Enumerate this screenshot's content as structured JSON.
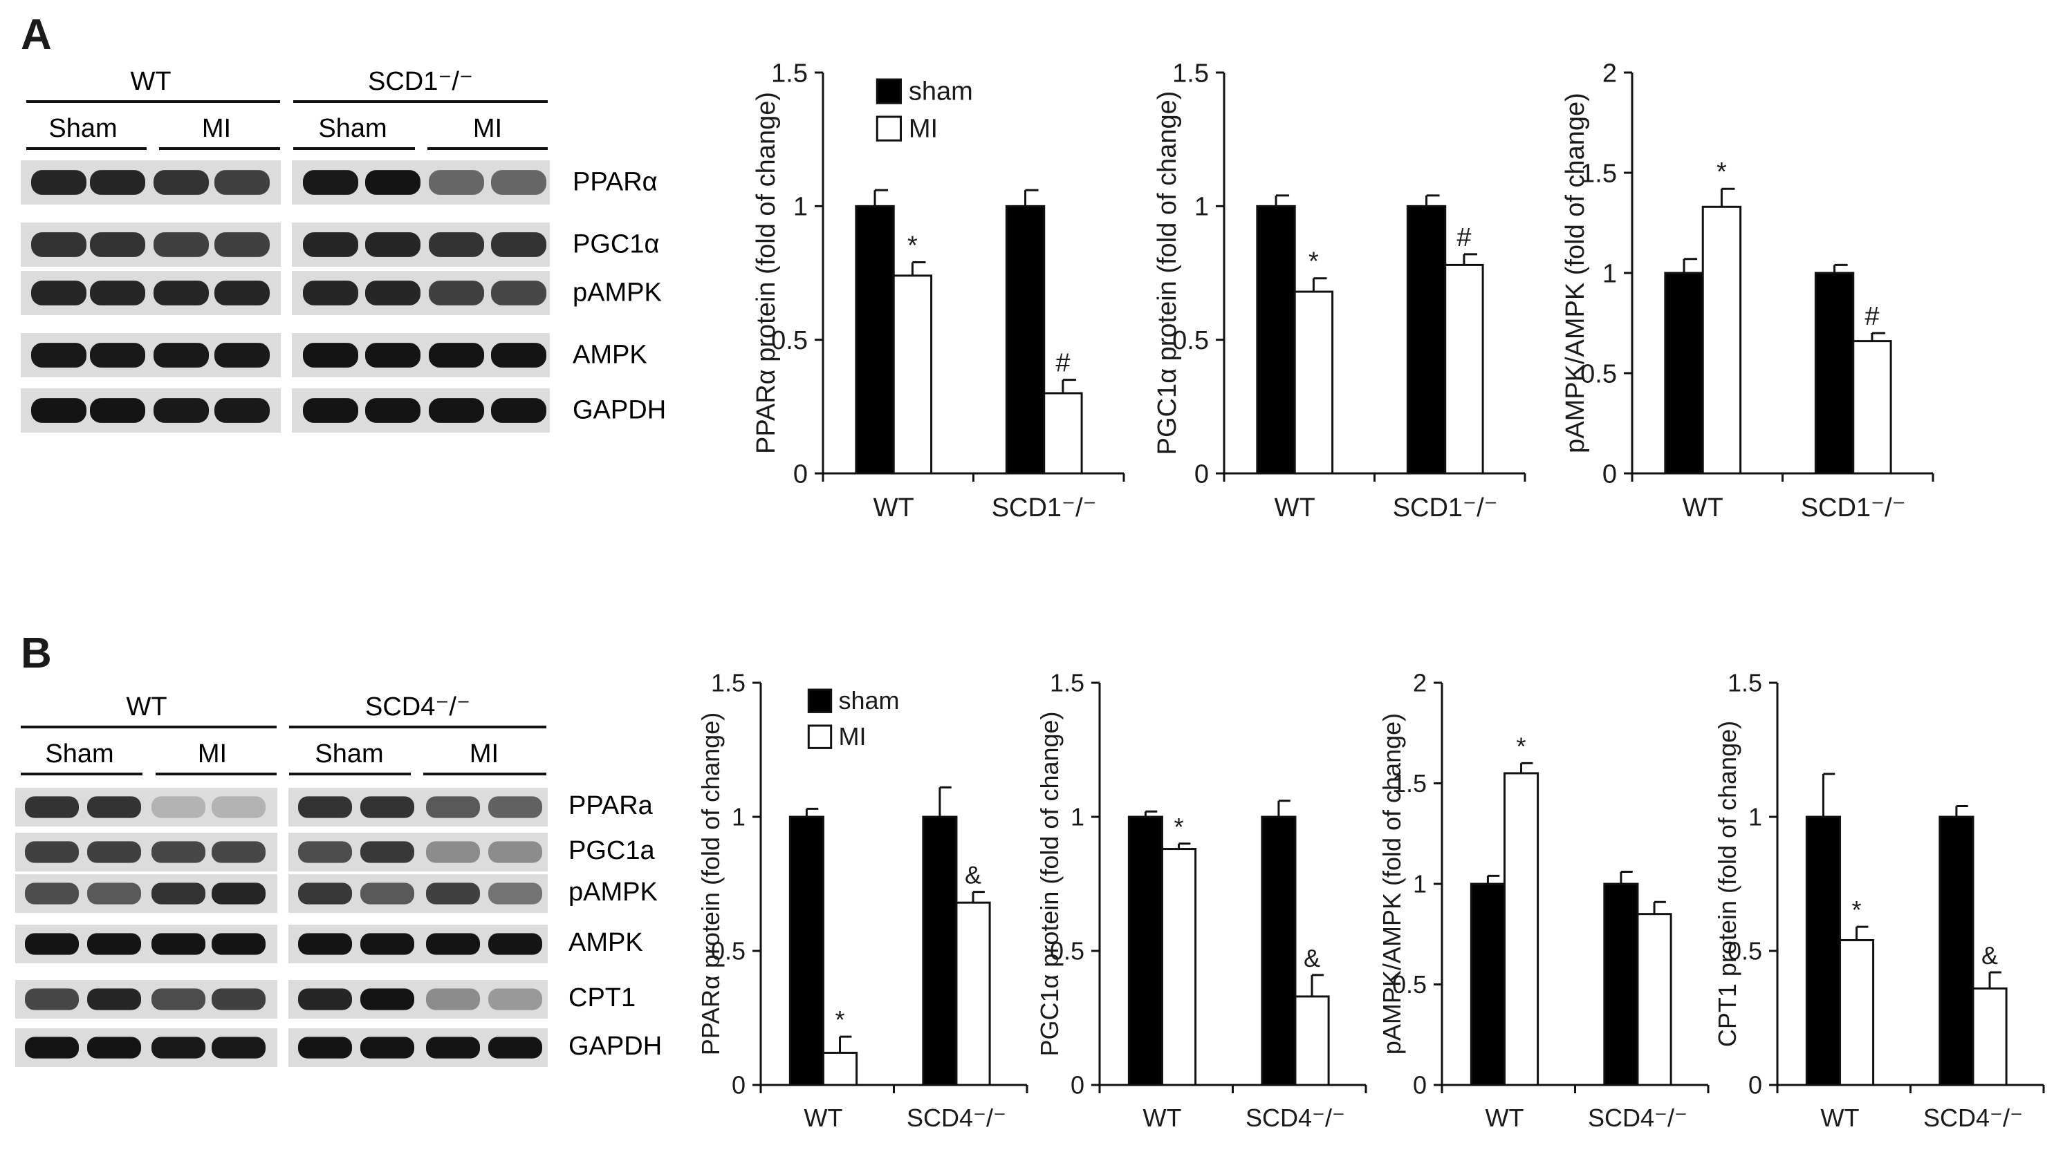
{
  "panels": {
    "A": {
      "letter": "A",
      "blot": {
        "groups": [
          "WT",
          "SCD1⁻/⁻"
        ],
        "conditions": [
          "Sham",
          "MI",
          "Sham",
          "MI"
        ],
        "rows": [
          "PPARα",
          "PGC1α",
          "pAMPK",
          "AMPK",
          "GAPDH"
        ]
      }
    },
    "B": {
      "letter": "B",
      "blot": {
        "groups": [
          "WT",
          "SCD4⁻/⁻"
        ],
        "conditions": [
          "Sham",
          "MI",
          "Sham",
          "MI"
        ],
        "rows": [
          "PPARa",
          "PGC1a",
          "pAMPK",
          "AMPK",
          "CPT1",
          "GAPDH"
        ]
      }
    }
  },
  "chart_data": [
    {
      "type": "bar",
      "panel": "A",
      "ylabel": "PPARα protein (fold of change)",
      "categories": [
        "WT",
        "SCD1⁻/⁻"
      ],
      "ylim": [
        0,
        1.5
      ],
      "yticks": [
        "0",
        "0.5",
        "1",
        "1.5"
      ],
      "legend": {
        "placement": "top-left",
        "entries": [
          "sham",
          "MI"
        ]
      },
      "series": [
        {
          "name": "sham",
          "color": "#000000",
          "values": [
            1.0,
            1.0
          ],
          "errors": [
            0.06,
            0.06
          ],
          "annotations": [
            "",
            ""
          ]
        },
        {
          "name": "MI",
          "color": "#ffffff",
          "values": [
            0.74,
            0.3
          ],
          "errors": [
            0.05,
            0.05
          ],
          "annotations": [
            "*",
            "#"
          ]
        }
      ]
    },
    {
      "type": "bar",
      "panel": "A",
      "ylabel": "PGC1α protein (fold of change)",
      "categories": [
        "WT",
        "SCD1⁻/⁻"
      ],
      "ylim": [
        0,
        1.5
      ],
      "yticks": [
        "0",
        "0.5",
        "1",
        "1.5"
      ],
      "series": [
        {
          "name": "sham",
          "color": "#000000",
          "values": [
            1.0,
            1.0
          ],
          "errors": [
            0.04,
            0.04
          ],
          "annotations": [
            "",
            ""
          ]
        },
        {
          "name": "MI",
          "color": "#ffffff",
          "values": [
            0.68,
            0.78
          ],
          "errors": [
            0.05,
            0.04
          ],
          "annotations": [
            "*",
            "#"
          ]
        }
      ]
    },
    {
      "type": "bar",
      "panel": "A",
      "ylabel": "pAMPK/AMPK (fold of change)",
      "categories": [
        "WT",
        "SCD1⁻/⁻"
      ],
      "ylim": [
        0,
        2
      ],
      "yticks": [
        "0",
        "0.5",
        "1",
        "1.5",
        "2"
      ],
      "series": [
        {
          "name": "sham",
          "color": "#000000",
          "values": [
            1.0,
            1.0
          ],
          "errors": [
            0.07,
            0.04
          ],
          "annotations": [
            "",
            ""
          ]
        },
        {
          "name": "MI",
          "color": "#ffffff",
          "values": [
            1.33,
            0.66
          ],
          "errors": [
            0.09,
            0.04
          ],
          "annotations": [
            "*",
            "#"
          ]
        }
      ]
    },
    {
      "type": "bar",
      "panel": "B",
      "ylabel": "PPARα protein (fold of change)",
      "categories": [
        "WT",
        "SCD4⁻/⁻"
      ],
      "ylim": [
        0,
        1.5
      ],
      "yticks": [
        "0",
        "0.5",
        "1",
        "1.5"
      ],
      "legend": {
        "placement": "top-left",
        "entries": [
          "sham",
          "MI"
        ]
      },
      "series": [
        {
          "name": "sham",
          "color": "#000000",
          "values": [
            1.0,
            1.0
          ],
          "errors": [
            0.03,
            0.11
          ],
          "annotations": [
            "",
            ""
          ]
        },
        {
          "name": "MI",
          "color": "#ffffff",
          "values": [
            0.12,
            0.68
          ],
          "errors": [
            0.06,
            0.04
          ],
          "annotations": [
            "*",
            "&"
          ]
        }
      ]
    },
    {
      "type": "bar",
      "panel": "B",
      "ylabel": "PGC1α protein (fold of change)",
      "categories": [
        "WT",
        "SCD4⁻/⁻"
      ],
      "ylim": [
        0,
        1.5
      ],
      "yticks": [
        "0",
        "0.5",
        "1",
        "1.5"
      ],
      "series": [
        {
          "name": "sham",
          "color": "#000000",
          "values": [
            1.0,
            1.0
          ],
          "errors": [
            0.02,
            0.06
          ],
          "annotations": [
            "",
            ""
          ]
        },
        {
          "name": "MI",
          "color": "#ffffff",
          "values": [
            0.88,
            0.33
          ],
          "errors": [
            0.02,
            0.08
          ],
          "annotations": [
            "*",
            "&"
          ]
        }
      ]
    },
    {
      "type": "bar",
      "panel": "B",
      "ylabel": "pAMPK/AMPK (fold of change)",
      "categories": [
        "WT",
        "SCD4⁻/⁻"
      ],
      "ylim": [
        0,
        2
      ],
      "yticks": [
        "0",
        "0.5",
        "1",
        "1.5",
        "2"
      ],
      "series": [
        {
          "name": "sham",
          "color": "#000000",
          "values": [
            1.0,
            1.0
          ],
          "errors": [
            0.04,
            0.06
          ],
          "annotations": [
            "",
            ""
          ]
        },
        {
          "name": "MI",
          "color": "#ffffff",
          "values": [
            1.55,
            0.85
          ],
          "errors": [
            0.05,
            0.06
          ],
          "annotations": [
            "*",
            ""
          ]
        }
      ]
    },
    {
      "type": "bar",
      "panel": "B",
      "ylabel": "CPT1 protein (fold of change)",
      "categories": [
        "WT",
        "SCD4⁻/⁻"
      ],
      "ylim": [
        0,
        1.5
      ],
      "yticks": [
        "0",
        "0.5",
        "1",
        "1.5"
      ],
      "series": [
        {
          "name": "sham",
          "color": "#000000",
          "values": [
            1.0,
            1.0
          ],
          "errors": [
            0.16,
            0.04
          ],
          "annotations": [
            "",
            ""
          ]
        },
        {
          "name": "MI",
          "color": "#ffffff",
          "values": [
            0.54,
            0.36
          ],
          "errors": [
            0.05,
            0.06
          ],
          "annotations": [
            "*",
            "&"
          ]
        }
      ]
    }
  ]
}
